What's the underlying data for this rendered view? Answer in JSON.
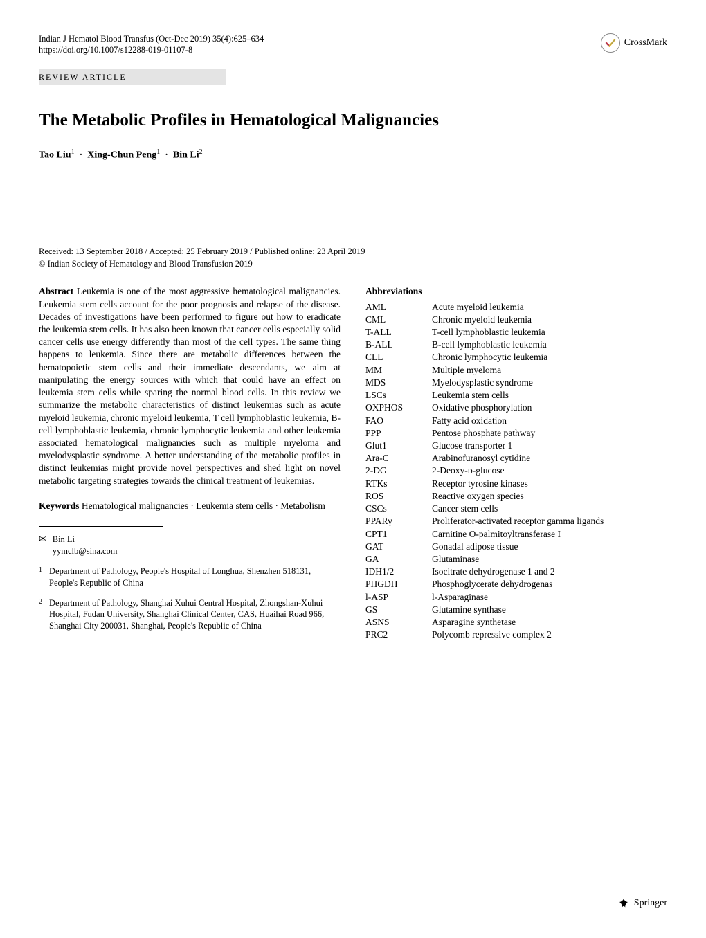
{
  "journal_citation": "Indian J Hematol Blood Transfus (Oct-Dec 2019) 35(4):625–634",
  "doi_line": "https://doi.org/10.1007/s12288-019-01107-8",
  "crossmark_label": "CrossMark",
  "article_type": "REVIEW ARTICLE",
  "title": "The Metabolic Profiles in Hematological Malignancies",
  "authors_html_parts": {
    "a1": "Tao Liu",
    "s1": "1",
    "a2": "Xing-Chun Peng",
    "s2": "1",
    "a3": "Bin Li",
    "s3": "2"
  },
  "dates_line": "Received: 13 September 2018 / Accepted: 25 February 2019 / Published online: 23 April 2019",
  "copyright_line": "© Indian Society of Hematology and Blood Transfusion 2019",
  "abstract_label": "Abstract",
  "abstract_body": " Leukemia is one of the most aggressive hematological malignancies. Leukemia stem cells account for the poor prognosis and relapse of the disease. Decades of investigations have been performed to figure out how to eradicate the leukemia stem cells. It has also been known that cancer cells especially solid cancer cells use energy differently than most of the cell types. The same thing happens to leukemia. Since there are metabolic differences between the hematopoietic stem cells and their immediate descendants, we aim at manipulating the energy sources with which that could have an effect on leukemia stem cells while sparing the normal blood cells. In this review we summarize the metabolic characteristics of distinct leukemias such as acute myeloid leukemia, chronic myeloid leukemia, T cell lymphoblastic leukemia, B-cell lymphoblastic leukemia, chronic lymphocytic leukemia and other leukemia associated hematological malignancies such as multiple myeloma and myelodysplastic syndrome. A better understanding of the metabolic profiles in distinct leukemias might provide novel perspectives and shed light on novel metabolic targeting strategies towards the clinical treatment of leukemias.",
  "keywords_label": "Keywords",
  "keywords_body": " Hematological malignancies · Leukemia stem cells · Metabolism",
  "corresponding": {
    "name": "Bin Li",
    "email": "yymclb@sina.com"
  },
  "affiliations": [
    {
      "num": "1",
      "text": "Department of Pathology, People's Hospital of Longhua, Shenzhen 518131, People's Republic of China"
    },
    {
      "num": "2",
      "text": "Department of Pathology, Shanghai Xuhui Central Hospital, Zhongshan-Xuhui Hospital, Fudan University, Shanghai Clinical Center, CAS, Huaihai Road 966, Shanghai City 200031, Shanghai, People's Republic of China"
    }
  ],
  "abbreviations_heading": "Abbreviations",
  "abbreviations": [
    {
      "k": "AML",
      "v": "Acute myeloid leukemia"
    },
    {
      "k": "CML",
      "v": "Chronic myeloid leukemia"
    },
    {
      "k": "T-ALL",
      "v": "T-cell lymphoblastic leukemia"
    },
    {
      "k": "B-ALL",
      "v": "B-cell lymphoblastic leukemia"
    },
    {
      "k": "CLL",
      "v": "Chronic lymphocytic leukemia"
    },
    {
      "k": "MM",
      "v": "Multiple myeloma"
    },
    {
      "k": "MDS",
      "v": "Myelodysplastic syndrome"
    },
    {
      "k": "LSCs",
      "v": "Leukemia stem cells"
    },
    {
      "k": "OXPHOS",
      "v": "Oxidative phosphorylation"
    },
    {
      "k": "FAO",
      "v": "Fatty acid oxidation"
    },
    {
      "k": "PPP",
      "v": "Pentose phosphate pathway"
    },
    {
      "k": "Glut1",
      "v": "Glucose transporter 1"
    },
    {
      "k": "Ara-C",
      "v": "Arabinofuranosyl cytidine"
    },
    {
      "k": "2-DG",
      "v": "2-Deoxy-ᴅ-glucose"
    },
    {
      "k": "RTKs",
      "v": "Receptor tyrosine kinases"
    },
    {
      "k": "ROS",
      "v": "Reactive oxygen species"
    },
    {
      "k": "CSCs",
      "v": "Cancer stem cells"
    },
    {
      "k": "PPARγ",
      "v": "Proliferator-activated receptor gamma ligands"
    },
    {
      "k": "CPT1",
      "v": "Carnitine O-palmitoyltransferase I"
    },
    {
      "k": "GAT",
      "v": "Gonadal adipose tissue"
    },
    {
      "k": "GA",
      "v": "Glutaminase"
    },
    {
      "k": "IDH1/2",
      "v": "Isocitrate dehydrogenase 1 and 2"
    },
    {
      "k": "PHGDH",
      "v": "Phosphoglycerate dehydrogenas"
    },
    {
      "k": "l-ASP",
      "v": "l-Asparaginase"
    },
    {
      "k": "GS",
      "v": "Glutamine synthase"
    },
    {
      "k": "ASNS",
      "v": "Asparagine synthetase"
    },
    {
      "k": "PRC2",
      "v": "Polycomb repressive complex 2"
    }
  ],
  "springer_label": "Springer",
  "colors": {
    "text": "#000000",
    "bg": "#ffffff",
    "article_type_bg": "#e4e4e4",
    "crossmark_red": "#d33",
    "crossmark_yellow": "#f3c023",
    "crossmark_blue": "#1f5fbf",
    "crossmark_green": "#2aa84a",
    "springer_icon": "#000000"
  }
}
